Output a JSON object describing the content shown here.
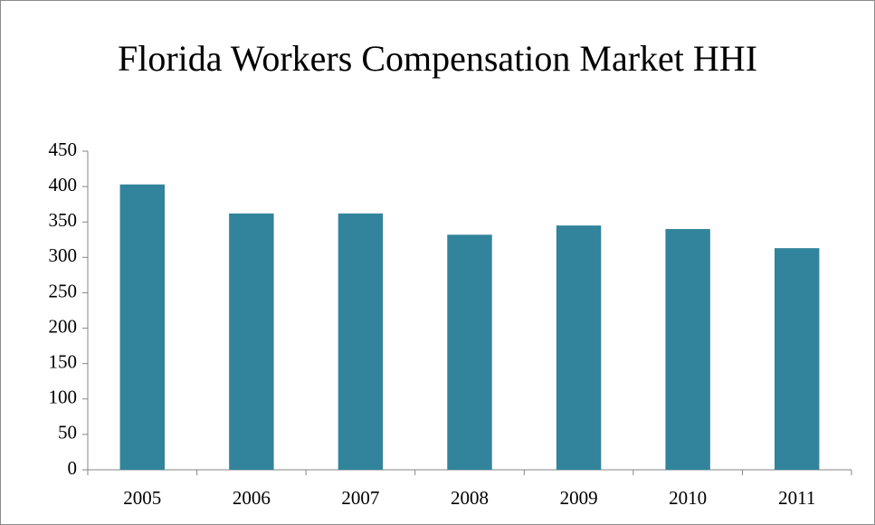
{
  "chart_data": {
    "type": "bar",
    "title": "Florida Workers Compensation Market HHI",
    "categories": [
      "2005",
      "2006",
      "2007",
      "2008",
      "2009",
      "2010",
      "2011"
    ],
    "values": [
      403,
      362,
      362,
      332,
      345,
      340,
      313
    ],
    "color": "#31849b",
    "ylim": [
      0,
      450
    ],
    "yticks": [
      0,
      50,
      100,
      150,
      200,
      250,
      300,
      350,
      400,
      450
    ],
    "grid": false
  }
}
